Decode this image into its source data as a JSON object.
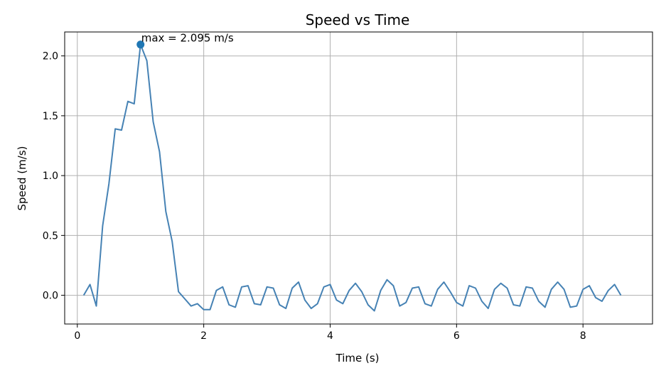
{
  "chart_data": {
    "type": "line",
    "title": "Speed vs Time",
    "xlabel": "Time (s)",
    "ylabel": "Speed (m/s)",
    "xlim": [
      -0.2,
      9.1
    ],
    "ylim": [
      -0.24,
      2.2
    ],
    "xticks": [
      0,
      2,
      4,
      6,
      8
    ],
    "xtick_labels": [
      "0",
      "2",
      "4",
      "6",
      "8"
    ],
    "yticks": [
      0.0,
      0.5,
      1.0,
      1.5,
      2.0
    ],
    "ytick_labels": [
      "0.0",
      "0.5",
      "1.0",
      "1.5",
      "2.0"
    ],
    "grid": true,
    "series": [
      {
        "color": "#4682b4",
        "x": [
          0.1,
          0.2,
          0.3,
          0.4,
          0.5,
          0.6,
          0.7,
          0.8,
          0.9,
          1.0,
          1.1,
          1.2,
          1.3,
          1.4,
          1.5,
          1.6,
          1.7,
          1.8,
          1.9,
          2.0,
          2.1,
          2.2,
          2.3,
          2.4,
          2.5,
          2.6,
          2.7,
          2.8,
          2.9,
          3.0,
          3.1,
          3.2,
          3.3,
          3.4,
          3.5,
          3.6,
          3.7,
          3.8,
          3.9,
          4.0,
          4.1,
          4.2,
          4.3,
          4.4,
          4.5,
          4.6,
          4.7,
          4.8,
          4.9,
          5.0,
          5.1,
          5.2,
          5.3,
          5.4,
          5.5,
          5.6,
          5.7,
          5.8,
          5.9,
          6.0,
          6.1,
          6.2,
          6.3,
          6.4,
          6.5,
          6.6,
          6.7,
          6.8,
          6.9,
          7.0,
          7.1,
          7.2,
          7.3,
          7.4,
          7.5,
          7.6,
          7.7,
          7.8,
          7.9,
          8.0,
          8.1,
          8.2,
          8.3,
          8.4,
          8.5,
          8.6
        ],
        "y": [
          0.0,
          0.09,
          -0.09,
          0.58,
          0.93,
          1.39,
          1.38,
          1.62,
          1.6,
          2.095,
          1.96,
          1.45,
          1.2,
          0.7,
          0.45,
          0.03,
          -0.03,
          -0.09,
          -0.07,
          -0.12,
          -0.12,
          0.04,
          0.07,
          -0.08,
          -0.1,
          0.07,
          0.08,
          -0.07,
          -0.08,
          0.07,
          0.06,
          -0.08,
          -0.11,
          0.06,
          0.11,
          -0.04,
          -0.11,
          -0.07,
          0.07,
          0.09,
          -0.04,
          -0.07,
          0.04,
          0.1,
          0.03,
          -0.08,
          -0.13,
          0.04,
          0.13,
          0.08,
          -0.09,
          -0.06,
          0.06,
          0.07,
          -0.07,
          -0.09,
          0.05,
          0.11,
          0.03,
          -0.06,
          -0.09,
          0.08,
          0.06,
          -0.05,
          -0.11,
          0.05,
          0.1,
          0.06,
          -0.08,
          -0.09,
          0.07,
          0.06,
          -0.05,
          -0.1,
          0.05,
          0.11,
          0.05,
          -0.1,
          -0.09,
          0.05,
          0.08,
          -0.02,
          -0.05,
          0.04,
          0.09,
          0.0
        ]
      }
    ],
    "annotation": {
      "text": "max = 2.095 m/s",
      "x": 1.0,
      "y": 2.095,
      "marker_color": "#1f77b4"
    }
  }
}
